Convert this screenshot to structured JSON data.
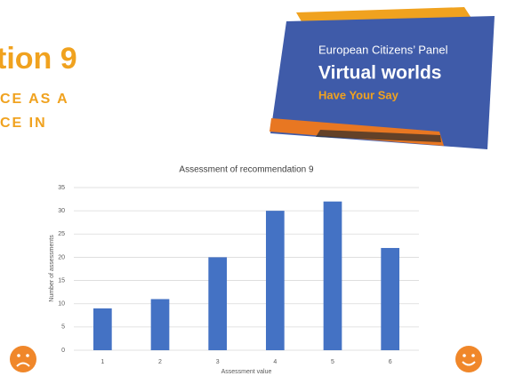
{
  "slide": {
    "heading": "tion 9",
    "subheading_lines": [
      "CE AS A",
      "CE IN"
    ],
    "banner": {
      "line1": "European Citizens’ Panel",
      "line2": "Virtual worlds",
      "line3": "Have Your Say"
    }
  },
  "chart_data": {
    "type": "bar",
    "title": "Assessment of recommendation 9",
    "x_label": "Assessment value",
    "y_label": "Number of assessments",
    "categories": [
      "1",
      "2",
      "3",
      "4",
      "5",
      "6"
    ],
    "values": [
      9,
      11,
      20,
      30,
      32,
      22
    ],
    "color": "#4472c4",
    "ylim": [
      0,
      35
    ],
    "yticks": [
      0,
      5,
      10,
      15,
      20,
      25,
      30,
      35
    ],
    "grid": true
  }
}
